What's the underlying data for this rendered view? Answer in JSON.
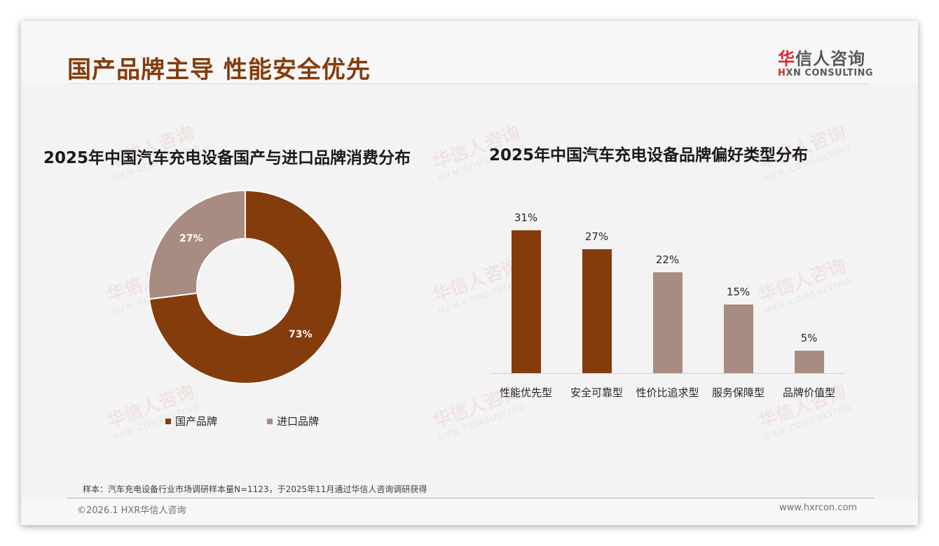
{
  "header": {
    "title": "国产品牌主导 性能安全优先",
    "logo": {
      "cn_first": "华",
      "cn_rest": "信人咨询",
      "en_first": "H",
      "en_rest": "XN CONSULTING"
    }
  },
  "watermark": {
    "cn": "华信人咨询",
    "en": "HXN CONSULTING"
  },
  "colors": {
    "primary": "#843c0c",
    "secondary": "#a88b81",
    "title": "#843c0c"
  },
  "chart_data": [
    {
      "type": "pie",
      "variant": "donut",
      "title": "2025年中国汽车充电设备国产与进口品牌消费分布",
      "categories": [
        "国产品牌",
        "进口品牌"
      ],
      "values": [
        73,
        27
      ],
      "labels": [
        "73%",
        "27%"
      ],
      "colors": [
        "#843c0c",
        "#a88b81"
      ],
      "legend_position": "bottom"
    },
    {
      "type": "bar",
      "title": "2025年中国汽车充电设备品牌偏好类型分布",
      "categories": [
        "性能优先型",
        "安全可靠型",
        "性价比追求型",
        "服务保障型",
        "品牌价值型"
      ],
      "values": [
        31,
        27,
        22,
        15,
        5
      ],
      "labels": [
        "31%",
        "27%",
        "22%",
        "15%",
        "5%"
      ],
      "colors": [
        "#843c0c",
        "#843c0c",
        "#a88b81",
        "#a88b81",
        "#a88b81"
      ],
      "xlabel": "",
      "ylabel": "",
      "ylim": [
        0,
        35
      ],
      "grid": false
    }
  ],
  "footer": {
    "note": "样本：汽车充电设备行业市场调研样本量N=1123，于2025年11月通过华信人咨询调研获得",
    "copyright": "©2026.1 HXR华信人咨询",
    "website": "www.hxrcon.com"
  }
}
